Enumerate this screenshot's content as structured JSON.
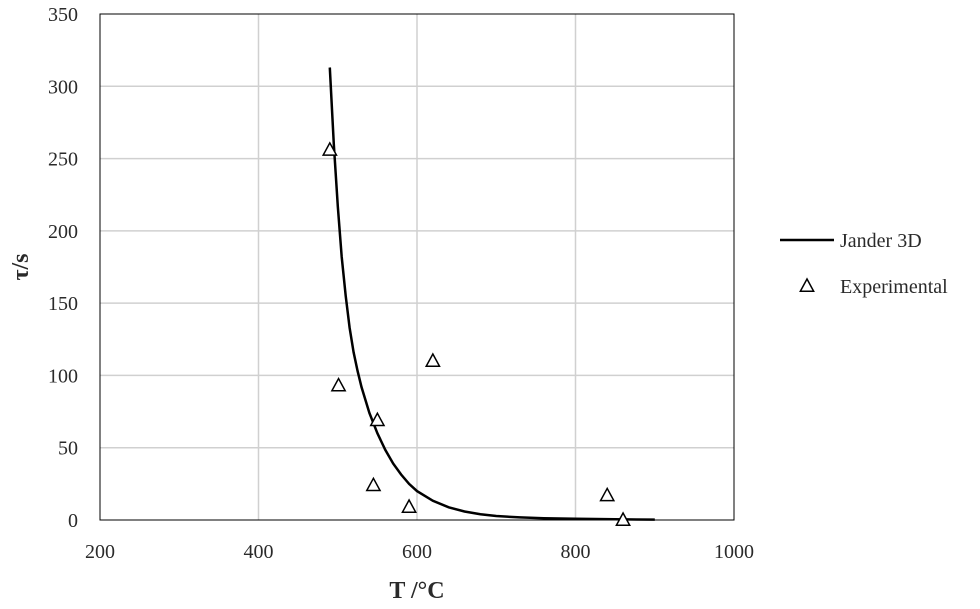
{
  "chart_data": {
    "type": "scatter",
    "title": "",
    "xlabel": "T /°C",
    "ylabel": "τ/s",
    "xlim": [
      200,
      1000
    ],
    "ylim": [
      0,
      350
    ],
    "xticks": [
      200,
      400,
      600,
      800,
      1000
    ],
    "yticks": [
      0,
      50,
      100,
      150,
      200,
      250,
      300,
      350
    ],
    "grid": true,
    "legend_position": "right",
    "series": [
      {
        "name": "Jander 3D",
        "kind": "line",
        "color": "#000000",
        "x": [
          490,
          495,
          500,
          505,
          510,
          515,
          520,
          525,
          530,
          540,
          550,
          560,
          570,
          580,
          590,
          600,
          620,
          640,
          660,
          680,
          700,
          730,
          760,
          800,
          850,
          900
        ],
        "y": [
          313,
          260,
          217,
          182,
          155,
          133,
          116,
          103,
          92,
          74,
          60,
          48.5,
          39,
          31.5,
          25,
          20,
          13.3,
          8.8,
          5.9,
          4.0,
          2.8,
          1.8,
          1.2,
          0.8,
          0.5,
          0.3
        ]
      },
      {
        "name": "Experimental",
        "kind": "marker",
        "marker": "triangle-open",
        "color": "#000000",
        "points": [
          {
            "x": 490,
            "y": 256
          },
          {
            "x": 501,
            "y": 93
          },
          {
            "x": 550,
            "y": 69
          },
          {
            "x": 545,
            "y": 24
          },
          {
            "x": 590,
            "y": 9
          },
          {
            "x": 620,
            "y": 110
          },
          {
            "x": 840,
            "y": 17
          },
          {
            "x": 860,
            "y": 0
          }
        ]
      }
    ]
  }
}
